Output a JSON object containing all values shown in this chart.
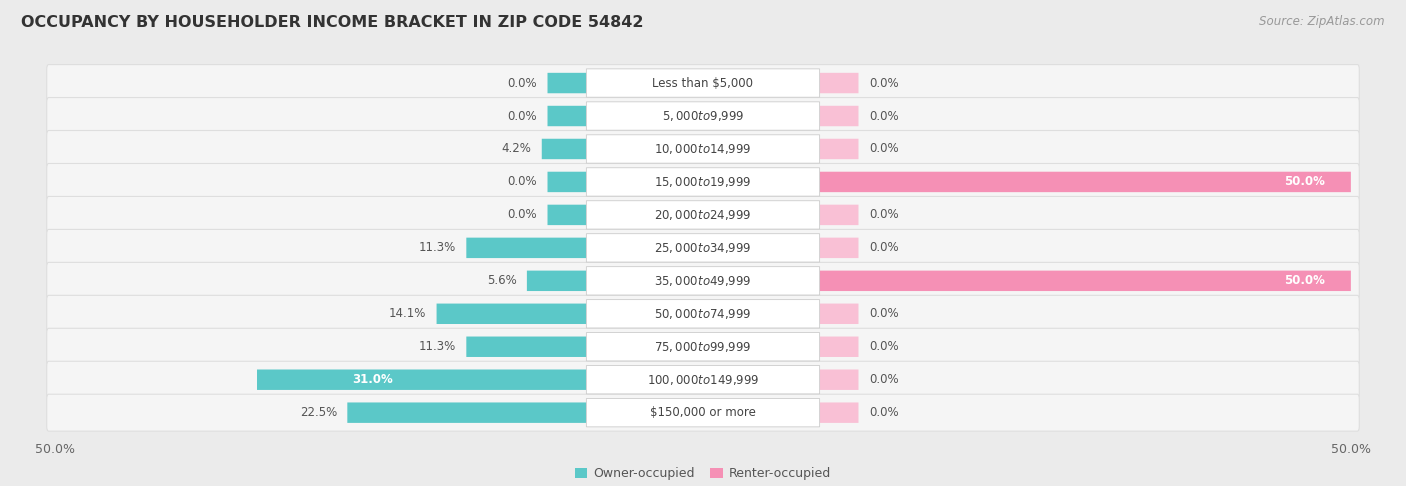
{
  "title": "OCCUPANCY BY HOUSEHOLDER INCOME BRACKET IN ZIP CODE 54842",
  "source": "Source: ZipAtlas.com",
  "categories": [
    "Less than $5,000",
    "$5,000 to $9,999",
    "$10,000 to $14,999",
    "$15,000 to $19,999",
    "$20,000 to $24,999",
    "$25,000 to $34,999",
    "$35,000 to $49,999",
    "$50,000 to $74,999",
    "$75,000 to $99,999",
    "$100,000 to $149,999",
    "$150,000 or more"
  ],
  "owner_values": [
    0.0,
    0.0,
    4.2,
    0.0,
    0.0,
    11.3,
    5.6,
    14.1,
    11.3,
    31.0,
    22.5
  ],
  "renter_values": [
    0.0,
    0.0,
    0.0,
    50.0,
    0.0,
    0.0,
    50.0,
    0.0,
    0.0,
    0.0,
    0.0
  ],
  "owner_color": "#5bc8c8",
  "owner_color_dark": "#3aabab",
  "renter_color": "#f590b5",
  "renter_color_light": "#f9c0d5",
  "bg_color": "#ebebeb",
  "row_bg_color": "#f5f5f5",
  "row_border_color": "#dedede",
  "axis_limit": 50.0,
  "min_bar": 3.0,
  "label_col_half": 9.0,
  "bar_height": 0.62,
  "title_fontsize": 11.5,
  "source_fontsize": 8.5,
  "label_fontsize": 8.5,
  "category_fontsize": 8.5,
  "legend_fontsize": 9,
  "tick_fontsize": 9
}
